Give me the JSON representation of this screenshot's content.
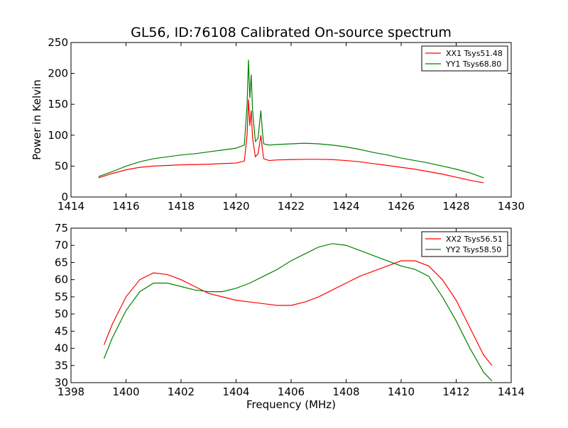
{
  "chart_data": [
    {
      "type": "line",
      "title": "GL56, ID:76108 Calibrated On-source spectrum",
      "xlabel": "",
      "ylabel": "Power in Kelvin",
      "xlim": [
        1414,
        1430
      ],
      "ylim": [
        0,
        250
      ],
      "xticks": [
        1414,
        1416,
        1418,
        1420,
        1422,
        1424,
        1426,
        1428,
        1430
      ],
      "yticks": [
        0,
        50,
        100,
        150,
        200,
        250
      ],
      "grid": false,
      "legend": "top-right",
      "series": [
        {
          "name": "XX1 Tsys51.48",
          "color": "#ff0000",
          "x": [
            1415.0,
            1415.5,
            1416.0,
            1416.5,
            1417.0,
            1417.5,
            1418.0,
            1418.5,
            1419.0,
            1419.5,
            1420.0,
            1420.3,
            1420.4,
            1420.45,
            1420.5,
            1420.55,
            1420.6,
            1420.7,
            1420.8,
            1420.9,
            1420.95,
            1421.0,
            1421.2,
            1421.5,
            1422.0,
            1422.5,
            1423.0,
            1423.5,
            1424.0,
            1424.5,
            1425.0,
            1425.5,
            1426.0,
            1426.5,
            1427.0,
            1427.5,
            1428.0,
            1428.5,
            1429.0
          ],
          "y": [
            31,
            38,
            44,
            48,
            50,
            51,
            52,
            52.5,
            53,
            54,
            55,
            58,
            100,
            158,
            115,
            140,
            95,
            65,
            70,
            100,
            80,
            62,
            59,
            60,
            60.5,
            61,
            61,
            60.5,
            59,
            57,
            54,
            51,
            48,
            45,
            41,
            37,
            32,
            27,
            23
          ]
        },
        {
          "name": "YY1 Tsys68.80",
          "color": "#008000",
          "x": [
            1415.0,
            1415.5,
            1416.0,
            1416.5,
            1417.0,
            1417.5,
            1418.0,
            1418.5,
            1419.0,
            1419.5,
            1420.0,
            1420.3,
            1420.4,
            1420.45,
            1420.5,
            1420.55,
            1420.6,
            1420.7,
            1420.8,
            1420.9,
            1420.95,
            1421.0,
            1421.2,
            1421.5,
            1422.0,
            1422.5,
            1423.0,
            1423.5,
            1424.0,
            1424.5,
            1425.0,
            1425.5,
            1426.0,
            1426.5,
            1427.0,
            1427.5,
            1428.0,
            1428.5,
            1429.0
          ],
          "y": [
            33,
            41,
            50,
            57,
            62,
            65,
            68,
            70,
            73,
            76,
            79,
            84,
            150,
            222,
            160,
            198,
            140,
            90,
            95,
            140,
            110,
            86,
            84,
            85,
            86,
            87,
            86,
            84,
            81,
            77,
            72,
            68,
            63,
            59,
            55,
            50,
            45,
            39,
            31
          ]
        }
      ]
    },
    {
      "type": "line",
      "title": "",
      "xlabel": "Frequency (MHz)",
      "ylabel": "",
      "xlim": [
        1398,
        1414
      ],
      "ylim": [
        30,
        75
      ],
      "xticks": [
        1398,
        1400,
        1402,
        1404,
        1406,
        1408,
        1410,
        1412,
        1414
      ],
      "yticks": [
        30,
        35,
        40,
        45,
        50,
        55,
        60,
        65,
        70,
        75
      ],
      "grid": false,
      "legend": "top-right",
      "series": [
        {
          "name": "XX2 Tsys56.51",
          "color": "#ff0000",
          "x": [
            1399.2,
            1399.5,
            1400.0,
            1400.5,
            1401.0,
            1401.5,
            1402.0,
            1402.5,
            1403.0,
            1403.5,
            1404.0,
            1404.5,
            1405.0,
            1405.5,
            1406.0,
            1406.5,
            1407.0,
            1407.5,
            1408.0,
            1408.5,
            1409.0,
            1409.5,
            1410.0,
            1410.5,
            1411.0,
            1411.5,
            1412.0,
            1412.5,
            1413.0,
            1413.3
          ],
          "y": [
            41,
            47,
            55,
            60,
            62,
            61.5,
            60,
            58,
            56,
            55,
            54,
            53.5,
            53,
            52.5,
            52.5,
            53.5,
            55,
            57,
            59,
            61,
            62.5,
            64,
            65.5,
            65.5,
            64,
            60,
            54,
            46,
            38,
            35
          ]
        },
        {
          "name": "YY2 Tsys58.50",
          "color": "#008000",
          "x": [
            1399.2,
            1399.5,
            1400.0,
            1400.5,
            1401.0,
            1401.5,
            1402.0,
            1402.5,
            1403.0,
            1403.5,
            1404.0,
            1404.5,
            1405.0,
            1405.5,
            1406.0,
            1406.5,
            1407.0,
            1407.5,
            1408.0,
            1408.5,
            1409.0,
            1409.5,
            1410.0,
            1410.5,
            1411.0,
            1411.5,
            1412.0,
            1412.5,
            1413.0,
            1413.3
          ],
          "y": [
            37,
            43,
            51,
            56.5,
            59,
            59,
            58,
            57,
            56.5,
            56.5,
            57.5,
            59,
            61,
            63,
            65.5,
            67.5,
            69.5,
            70.5,
            70,
            68.5,
            67,
            65.5,
            64,
            63,
            61,
            55,
            48,
            40,
            33,
            30.5
          ]
        }
      ]
    }
  ]
}
